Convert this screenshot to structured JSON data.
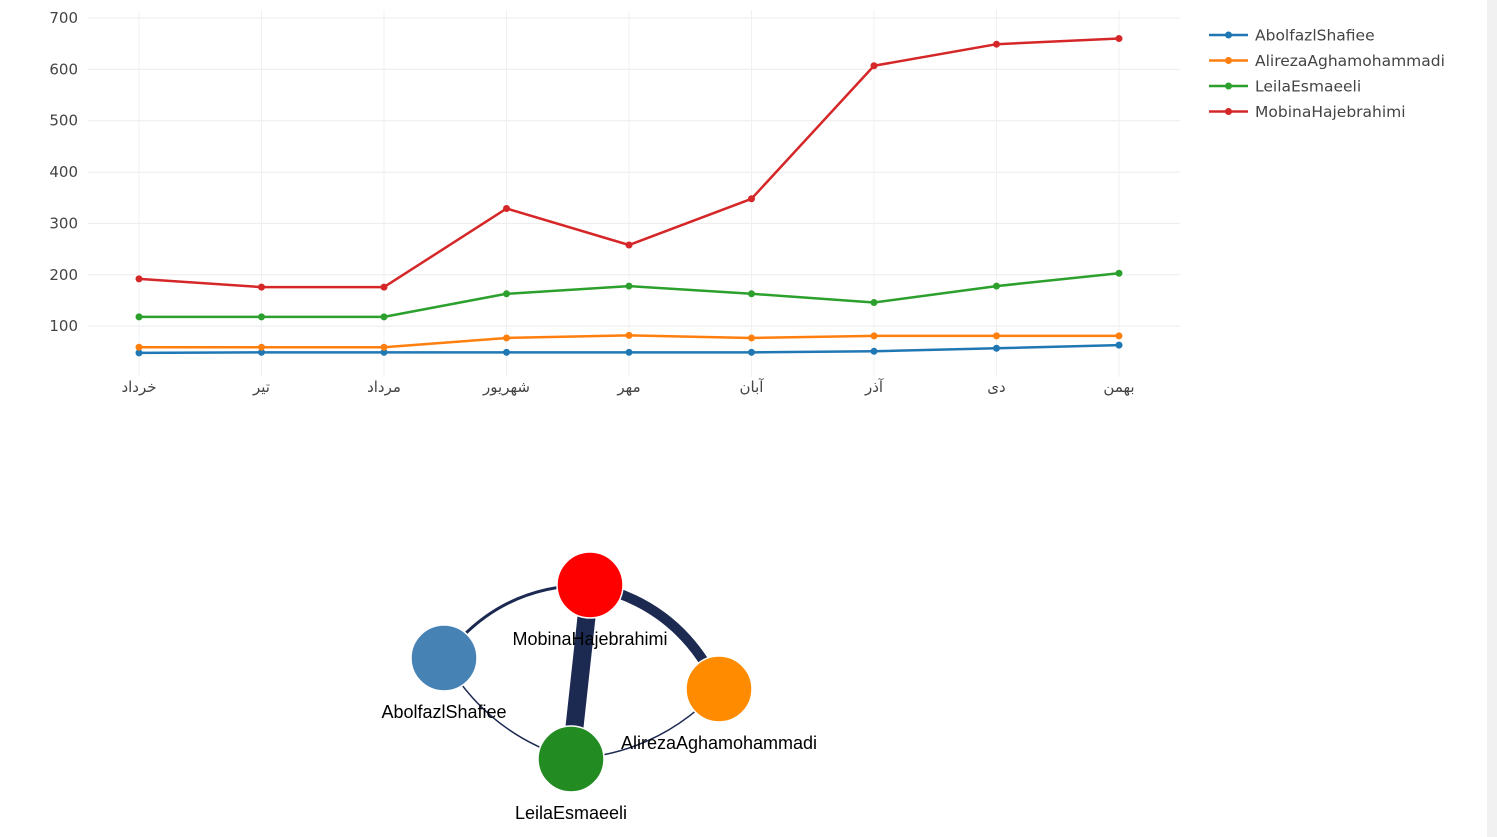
{
  "chart_data": [
    {
      "type": "line",
      "categories": [
        "خرداد",
        "تیر",
        "مرداد",
        "شهریور",
        "مهر",
        "آبان",
        "آذر",
        "دی",
        "بهمن"
      ],
      "series": [
        {
          "name": "AbolfazlShafiee",
          "color": "#1f77b4",
          "values": [
            48,
            49,
            49,
            49,
            49,
            49,
            51,
            57,
            63
          ]
        },
        {
          "name": "AlirezaAghamohammadi",
          "color": "#ff7f0e",
          "values": [
            59,
            59,
            59,
            77,
            82,
            77,
            81,
            81,
            81
          ]
        },
        {
          "name": "LeilaEsmaeeli",
          "color": "#2ca02c",
          "values": [
            118,
            118,
            118,
            163,
            178,
            163,
            146,
            178,
            203
          ]
        },
        {
          "name": "MobinaHajebrahimi",
          "color": "#d62728",
          "values": [
            192,
            176,
            176,
            329,
            258,
            348,
            607,
            649,
            660
          ]
        }
      ],
      "yticks": [
        100,
        200,
        300,
        400,
        500,
        600,
        700
      ],
      "ylim": [
        0,
        700
      ],
      "grid": true,
      "legend": "top-right"
    },
    {
      "type": "network",
      "nodes": [
        {
          "id": "MobinaHajebrahimi",
          "label": "MobinaHajebrahimi",
          "color": "#ff0000"
        },
        {
          "id": "AbolfazlShafiee",
          "label": "AbolfazlShafiee",
          "color": "#4682b4"
        },
        {
          "id": "AlirezaAghamohammadi",
          "label": "AlirezaAghamohammadi",
          "color": "#ff8c00"
        },
        {
          "id": "LeilaEsmaeeli",
          "label": "LeilaEsmaeeli",
          "color": "#228b22"
        }
      ],
      "edges": [
        {
          "from": "MobinaHajebrahimi",
          "to": "AbolfazlShafiee",
          "weight": 3
        },
        {
          "from": "MobinaHajebrahimi",
          "to": "AlirezaAghamohammadi",
          "weight": 10
        },
        {
          "from": "MobinaHajebrahimi",
          "to": "LeilaEsmaeeli",
          "weight": 18
        },
        {
          "from": "AbolfazlShafiee",
          "to": "LeilaEsmaeeli",
          "weight": 1.5
        },
        {
          "from": "AlirezaAghamohammadi",
          "to": "LeilaEsmaeeli",
          "weight": 1.5
        }
      ],
      "edge_color": "#1c2951"
    }
  ]
}
